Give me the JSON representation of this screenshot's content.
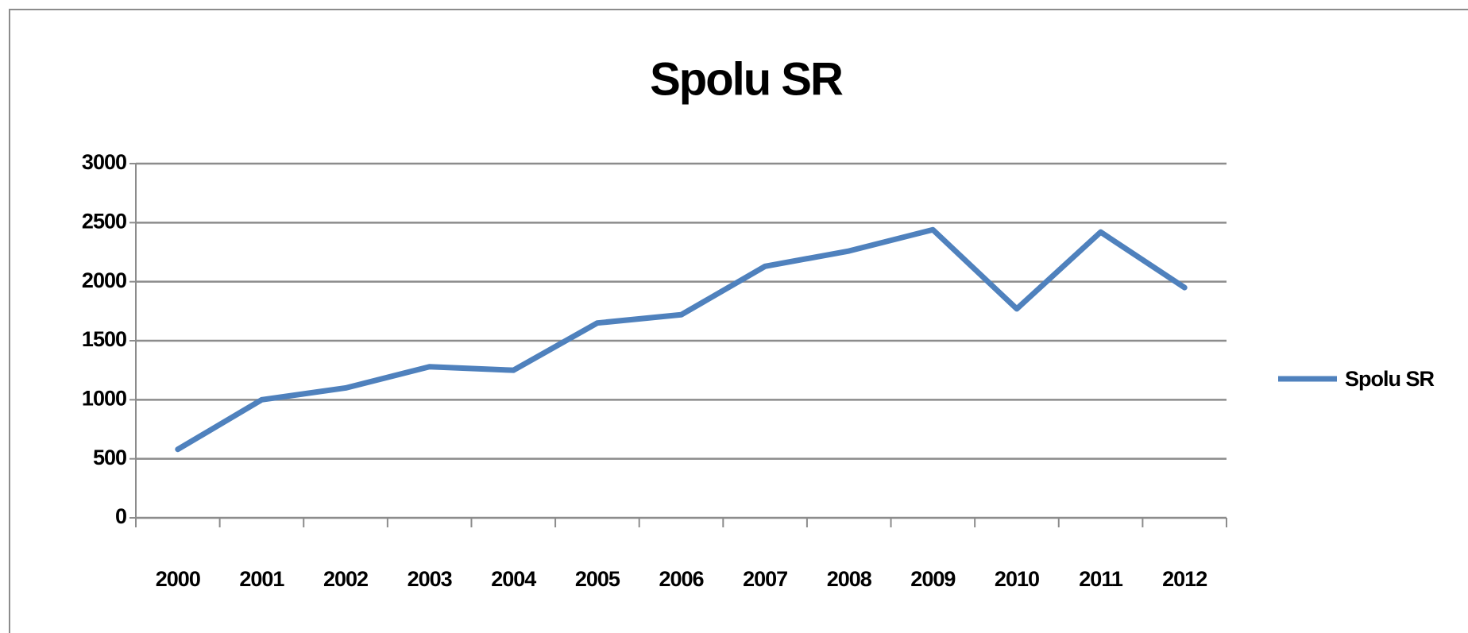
{
  "chart_data": {
    "type": "line",
    "title": "Spolu SR",
    "categories": [
      "2000",
      "2001",
      "2002",
      "2003",
      "2004",
      "2005",
      "2006",
      "2007",
      "2008",
      "2009",
      "2010",
      "2011",
      "2012"
    ],
    "series": [
      {
        "name": "Spolu SR",
        "color": "#4f81bd",
        "values": [
          580,
          1000,
          1100,
          1280,
          1250,
          1650,
          1720,
          2130,
          2260,
          2440,
          1770,
          2420,
          1950
        ]
      }
    ],
    "ylim": [
      0,
      3000
    ],
    "yticks": [
      0,
      500,
      1000,
      1500,
      2000,
      2500,
      3000
    ],
    "grid": true,
    "legend": "right"
  }
}
